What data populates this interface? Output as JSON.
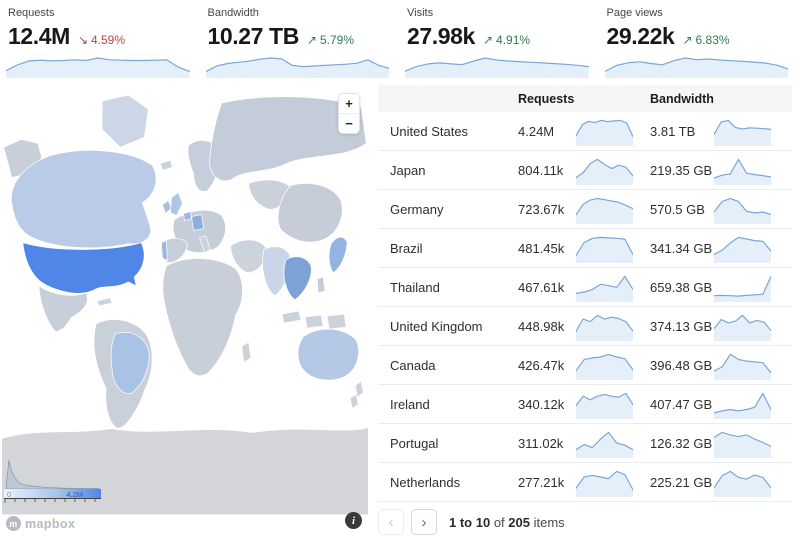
{
  "stats": [
    {
      "label": "Requests",
      "value": "12.4M",
      "delta": "4.59%",
      "direction": "down",
      "spark": [
        1.6,
        3.2,
        4.3,
        4.5,
        4.3,
        4.4,
        4.6,
        4.4,
        5.1,
        4.6,
        4.5,
        4.4,
        4.4,
        4.5,
        4.6,
        2.6,
        1.4
      ]
    },
    {
      "label": "Bandwidth",
      "value": "10.27 TB",
      "delta": "5.79%",
      "direction": "up",
      "spark": [
        1.6,
        3.4,
        4.2,
        4.6,
        5.0,
        5.6,
        6.0,
        5.7,
        3.6,
        3.2,
        3.4,
        3.6,
        3.8,
        4.0,
        4.3,
        5.4,
        3.6,
        2.6
      ]
    },
    {
      "label": "Visits",
      "value": "27.98k",
      "delta": "4.91%",
      "direction": "up",
      "spark": [
        1.6,
        3.0,
        3.8,
        4.1,
        3.8,
        3.6,
        4.7,
        5.6,
        5.0,
        4.7,
        4.5,
        4.3,
        4.1,
        3.9,
        3.7,
        3.4,
        3.0
      ]
    },
    {
      "label": "Page views",
      "value": "29.22k",
      "delta": "6.83%",
      "direction": "up",
      "spark": [
        1.5,
        3.2,
        4.0,
        4.3,
        3.8,
        3.4,
        4.6,
        5.4,
        4.9,
        5.1,
        4.8,
        4.6,
        4.4,
        4.2,
        3.9,
        3.3,
        2.2
      ]
    }
  ],
  "icons": {
    "up": "↗",
    "down": "↘"
  },
  "map": {
    "zoom_in_label": "+",
    "zoom_out_label": "−",
    "legend_min": "0",
    "legend_max": "4.2M",
    "attribution": "mapbox",
    "highlight_color": "#4f86e8"
  },
  "table": {
    "columns": [
      "Requests",
      "Bandwidth"
    ],
    "rows": [
      {
        "country": "United States",
        "requests": "4.24M",
        "bandwidth": "3.81 TB",
        "requests_spark": [
          2.0,
          4.6,
          5.4,
          5.1,
          5.6,
          5.3,
          5.5,
          5.6,
          5.0,
          1.8
        ],
        "bandwidth_spark": [
          2.6,
          5.8,
          6.2,
          4.4,
          4.0,
          4.3,
          4.2,
          4.1,
          3.9
        ]
      },
      {
        "country": "Japan",
        "requests": "804.11k",
        "bandwidth": "219.35 GB",
        "requests_spark": [
          1.4,
          2.6,
          4.8,
          5.8,
          4.6,
          3.6,
          4.4,
          3.9,
          1.8
        ],
        "bandwidth_spark": [
          1.6,
          2.4,
          2.8,
          7.0,
          3.0,
          2.6,
          2.3,
          1.9
        ]
      },
      {
        "country": "Germany",
        "requests": "723.67k",
        "bandwidth": "570.5 GB",
        "requests_spark": [
          1.8,
          4.2,
          5.2,
          5.6,
          5.3,
          5.0,
          4.7,
          4.0,
          3.2
        ],
        "bandwidth_spark": [
          2.6,
          5.2,
          6.0,
          5.2,
          2.8,
          2.4,
          2.6,
          2.0
        ]
      },
      {
        "country": "Brazil",
        "requests": "481.45k",
        "bandwidth": "341.34 GB",
        "requests_spark": [
          1.4,
          4.4,
          5.4,
          5.6,
          5.5,
          5.4,
          5.2,
          1.6
        ],
        "bandwidth_spark": [
          1.8,
          2.8,
          4.6,
          6.0,
          5.6,
          5.2,
          5.0,
          2.6
        ]
      },
      {
        "country": "Thailand",
        "requests": "467.61k",
        "bandwidth": "659.38 GB",
        "requests_spark": [
          1.8,
          2.2,
          2.8,
          4.2,
          3.8,
          3.4,
          6.2,
          2.8
        ],
        "bandwidth_spark": [
          1.5,
          1.6,
          1.5,
          1.4,
          1.6,
          1.8,
          2.0,
          7.6
        ]
      },
      {
        "country": "United Kingdom",
        "requests": "448.98k",
        "bandwidth": "374.13 GB",
        "requests_spark": [
          1.8,
          4.6,
          4.0,
          5.4,
          4.6,
          5.0,
          4.7,
          4.0,
          1.9
        ],
        "bandwidth_spark": [
          2.6,
          4.8,
          4.0,
          4.4,
          5.8,
          4.0,
          4.6,
          4.2,
          2.2
        ]
      },
      {
        "country": "Canada",
        "requests": "426.47k",
        "bandwidth": "396.48 GB",
        "requests_spark": [
          1.8,
          4.4,
          4.8,
          5.0,
          5.6,
          5.0,
          4.6,
          2.0
        ],
        "bandwidth_spark": [
          1.8,
          2.8,
          5.8,
          4.6,
          4.2,
          4.0,
          3.8,
          1.4
        ]
      },
      {
        "country": "Ireland",
        "requests": "340.12k",
        "bandwidth": "407.47 GB",
        "requests_spark": [
          2.6,
          4.6,
          3.8,
          4.6,
          5.0,
          4.6,
          4.4,
          5.2,
          2.8
        ],
        "bandwidth_spark": [
          1.3,
          1.8,
          2.2,
          1.8,
          2.2,
          2.8,
          6.6,
          2.2
        ]
      },
      {
        "country": "Portugal",
        "requests": "311.02k",
        "bandwidth": "126.32 GB",
        "requests_spark": [
          1.8,
          3.2,
          2.4,
          4.6,
          6.4,
          3.6,
          3.0,
          1.8
        ],
        "bandwidth_spark": [
          4.6,
          5.8,
          5.2,
          4.8,
          5.2,
          4.2,
          3.4,
          2.4
        ]
      },
      {
        "country": "Netherlands",
        "requests": "277.21k",
        "bandwidth": "225.21 GB",
        "requests_spark": [
          1.8,
          4.6,
          5.0,
          4.6,
          4.2,
          6.0,
          5.2,
          1.4
        ],
        "bandwidth_spark": [
          1.8,
          4.6,
          5.6,
          4.2,
          3.8,
          4.8,
          4.2,
          1.8
        ]
      }
    ]
  },
  "pagination": {
    "prev_label": "‹",
    "next_label": "›",
    "range": "1 to 10",
    "of_label": "of",
    "total": "205",
    "items_label": "items"
  }
}
